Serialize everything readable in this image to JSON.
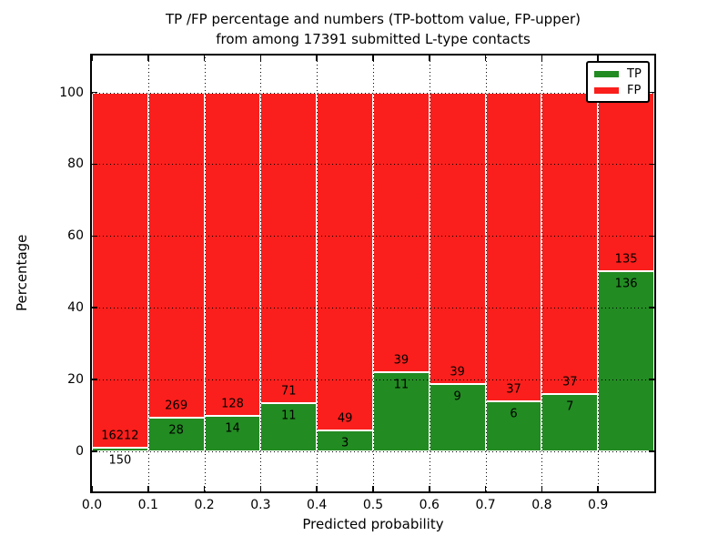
{
  "chart_data": {
    "type": "bar",
    "stacked": true,
    "normalized_to": 100,
    "title_lines": [
      "TP /FP percentage and numbers (TP-bottom value, FP-upper)",
      "from among 17391 submitted L-type contacts"
    ],
    "xlabel": "Predicted probability",
    "ylabel": "Percentage",
    "total_submitted": 17391,
    "bins": [
      0.0,
      0.1,
      0.2,
      0.3,
      0.4,
      0.5,
      0.6,
      0.7,
      0.8,
      0.9
    ],
    "bin_width": 0.1,
    "categories": [
      "0.0-0.1",
      "0.1-0.2",
      "0.2-0.3",
      "0.3-0.4",
      "0.4-0.5",
      "0.5-0.6",
      "0.6-0.7",
      "0.7-0.8",
      "0.8-0.9",
      "0.9-1.0"
    ],
    "series": [
      {
        "name": "TP",
        "color": "#228b22",
        "counts": [
          150,
          28,
          14,
          11,
          3,
          11,
          9,
          6,
          7,
          136
        ]
      },
      {
        "name": "FP",
        "color": "#fa1f1c",
        "counts": [
          16212,
          269,
          128,
          71,
          49,
          39,
          39,
          37,
          37,
          135
        ]
      }
    ],
    "tp_percent": [
      0.92,
      9.43,
      9.86,
      13.41,
      5.77,
      22.0,
      18.75,
      13.95,
      15.91,
      50.18
    ],
    "yticks": [
      0,
      20,
      40,
      60,
      80,
      100
    ],
    "xtick_labels": [
      "0.0",
      "0.1",
      "0.2",
      "0.3",
      "0.4",
      "0.5",
      "0.6",
      "0.7",
      "0.8",
      "0.9"
    ],
    "xlim": [
      0,
      1
    ],
    "ylim": [
      -11.2,
      110.3
    ],
    "grid": true,
    "grid_style": "dotted",
    "bar_edge_color": "#ffffff",
    "legend": {
      "position": "upper right",
      "entries": [
        "TP",
        "FP"
      ]
    }
  }
}
